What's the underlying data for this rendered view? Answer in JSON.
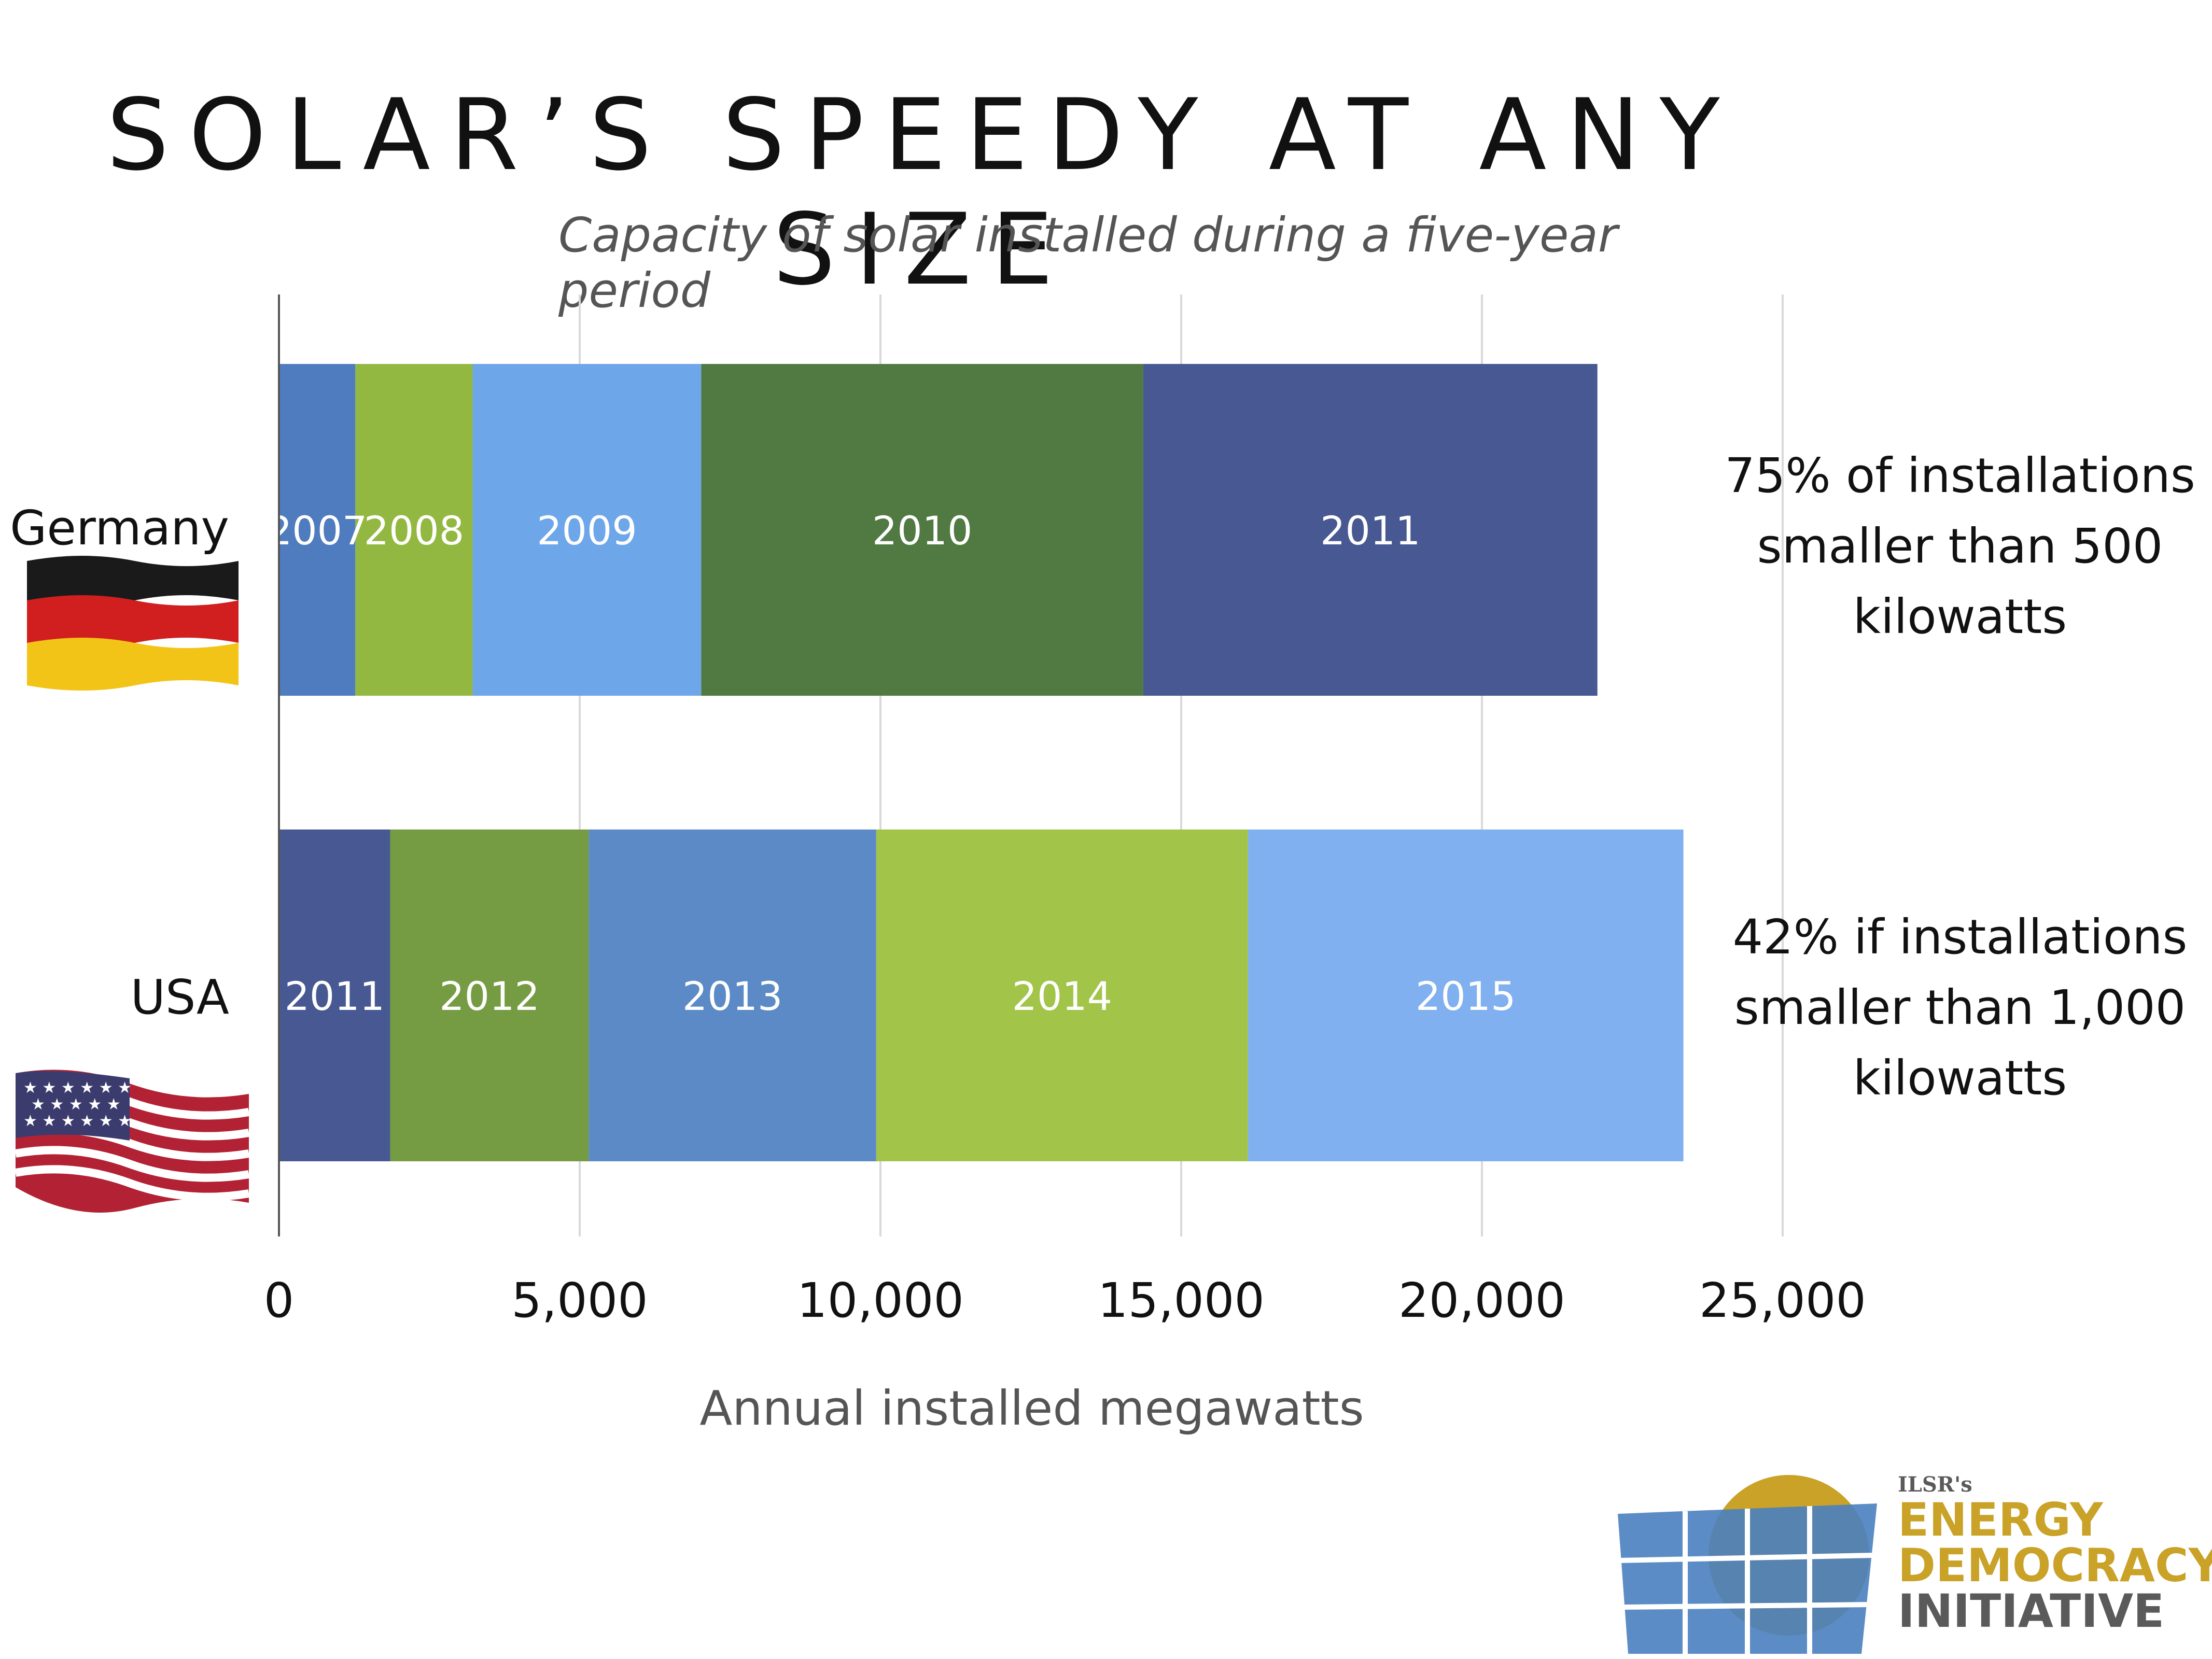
{
  "title": "SOLAR’S SPEEDY AT ANY SIZE",
  "subtitle": "Capacity of solar installed during a five-year period",
  "notes": [
    "75% of installations smaller than 500 kilowatts",
    "42% if installations smaller than 1,000 kilowatts"
  ],
  "logo": {
    "org": "ILSR's",
    "line1": "ENERGY",
    "line2": "DEMOCRACY",
    "line3": "INITIATIVE",
    "colors": {
      "gold": "#c9a227",
      "gray": "#5a5a5a",
      "panel": "#4a7fc0"
    }
  },
  "flags": [
    "germany-flag-icon",
    "usa-flag-icon"
  ],
  "chart_data": {
    "type": "bar",
    "orientation": "horizontal",
    "stacked": true,
    "xlabel": "Annual installed megawatts",
    "xlim": [
      0,
      25000
    ],
    "xticks": [
      0,
      5000,
      10000,
      15000,
      20000,
      25000
    ],
    "xtick_labels": [
      "0",
      "5,000",
      "10,000",
      "15,000",
      "20,000",
      "25,000"
    ],
    "grid": true,
    "categories": [
      "Germany",
      "USA"
    ],
    "bars": [
      {
        "category": "Germany",
        "segments": [
          {
            "label": "2007",
            "value": 1270,
            "color": "#4f7cbf"
          },
          {
            "label": "2008",
            "value": 1950,
            "color": "#93b842"
          },
          {
            "label": "2009",
            "value": 3800,
            "color": "#6ea6ea"
          },
          {
            "label": "2010",
            "value": 7350,
            "color": "#507a42"
          },
          {
            "label": "2011",
            "value": 7550,
            "color": "#485893"
          }
        ]
      },
      {
        "category": "USA",
        "segments": [
          {
            "label": "2011",
            "value": 1850,
            "color": "#485893"
          },
          {
            "label": "2012",
            "value": 3300,
            "color": "#759c42"
          },
          {
            "label": "2013",
            "value": 4780,
            "color": "#5c8ac6"
          },
          {
            "label": "2014",
            "value": 6180,
            "color": "#a1c449"
          },
          {
            "label": "2015",
            "value": 7240,
            "color": "#80b0ef"
          }
        ]
      }
    ]
  }
}
